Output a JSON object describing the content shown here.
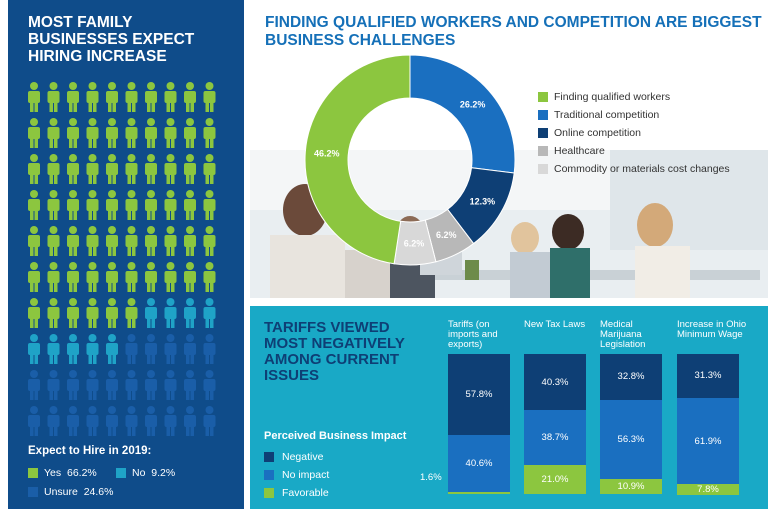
{
  "left": {
    "title": "MOST FAMILY BUSINESSES EXPECT HIRING INCREASE",
    "subtitle": "Expect to Hire in 2019:",
    "legend": [
      {
        "label": "Yes",
        "value": "66.2%",
        "color": "#8cc63f"
      },
      {
        "label": "No",
        "value": "9.2%",
        "color": "#1fa3c7"
      },
      {
        "label": "Unsure",
        "value": "24.6%",
        "color": "#1a5ea8"
      }
    ]
  },
  "top": {
    "title": "FINDING QUALIFIED WORKERS AND COMPETITION ARE BIGGEST BUSINESS CHALLENGES"
  },
  "bottom": {
    "title": "TARIFFS VIEWED MOST NEGATIVELY AMONG CURRENT ISSUES",
    "legend_title": "Perceived Business Impact",
    "legend": [
      {
        "label": "Negative",
        "color": "#0e3f75"
      },
      {
        "label": "No impact",
        "color": "#1a6fc0"
      },
      {
        "label": "Favorable",
        "color": "#8cc63f"
      }
    ]
  },
  "chart_data": [
    {
      "type": "pie",
      "title": "Expect to Hire in 2019:",
      "categories": [
        "Yes",
        "No",
        "Unsure"
      ],
      "values": [
        66.2,
        9.2,
        24.6
      ],
      "colors": [
        "#8cc63f",
        "#1fa3c7",
        "#1a5ea8"
      ]
    },
    {
      "type": "pie",
      "title": "FINDING QUALIFIED WORKERS AND COMPETITION ARE BIGGEST BUSINESS CHALLENGES",
      "categories": [
        "Finding qualified workers",
        "Traditional competition",
        "Online competition",
        "Healthcare",
        "Commodity or materials cost changes"
      ],
      "values": [
        46.2,
        26.2,
        12.3,
        6.2,
        6.2
      ],
      "labels": [
        "46.2%",
        "26.2%",
        "12.3%",
        "6.2%",
        "6.2%"
      ],
      "colors": [
        "#8cc63f",
        "#1a6fc0",
        "#0e3f75",
        "#b8b8b8",
        "#d8d8d8"
      ]
    },
    {
      "type": "bar",
      "stacked": true,
      "title": "TARIFFS VIEWED MOST NEGATIVELY AMONG CURRENT ISSUES",
      "categories": [
        "Tariffs (on imports and exports)",
        "New Tax Laws",
        "Medical Marijuana Legislation",
        "Increase in Ohio Minimum Wage"
      ],
      "series": [
        {
          "name": "Negative",
          "values": [
            57.8,
            40.3,
            32.8,
            31.3
          ],
          "labels": [
            "57.8%",
            "40.3%",
            "32.8%",
            "31.3%"
          ],
          "color": "#0e3f75"
        },
        {
          "name": "No impact",
          "values": [
            40.6,
            38.7,
            56.3,
            61.9
          ],
          "labels": [
            "40.6%",
            "38.7%",
            "56.3%",
            "61.9%"
          ],
          "color": "#1a6fc0"
        },
        {
          "name": "Favorable",
          "values": [
            1.6,
            21.0,
            10.9,
            7.8
          ],
          "labels": [
            "1.6%",
            "21.0%",
            "10.9%",
            "7.8%"
          ],
          "color": "#8cc63f"
        }
      ]
    }
  ]
}
